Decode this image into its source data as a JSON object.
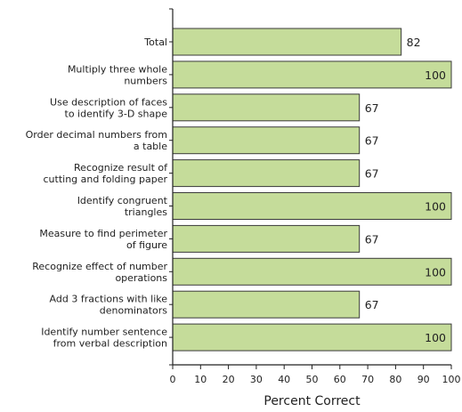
{
  "chart_data": {
    "type": "bar",
    "orientation": "horizontal",
    "categories": [
      [
        "Total"
      ],
      [
        "Multiply three whole",
        "numbers"
      ],
      [
        "Use description of faces",
        "to identify 3-D shape"
      ],
      [
        "Order decimal numbers from",
        "a table"
      ],
      [
        "Recognize result of",
        "cutting and folding paper"
      ],
      [
        "Identify congruent",
        "triangles"
      ],
      [
        "Measure to find perimeter",
        "of figure"
      ],
      [
        "Recognize effect of number",
        "operations"
      ],
      [
        "Add 3 fractions with like",
        "denominators"
      ],
      [
        "Identify number sentence",
        "from verbal description"
      ]
    ],
    "values": [
      82,
      100,
      67,
      67,
      67,
      100,
      67,
      100,
      67,
      100
    ],
    "title": "",
    "xlabel": "Percent Correct",
    "ylabel": "",
    "xlim": [
      0,
      100
    ],
    "xticks": [
      0,
      10,
      20,
      30,
      40,
      50,
      60,
      70,
      80,
      90,
      100
    ],
    "grid": false,
    "legend": "none",
    "bar_color": "#c5dc9a",
    "bar_edge_color": "#3a3a3a"
  }
}
